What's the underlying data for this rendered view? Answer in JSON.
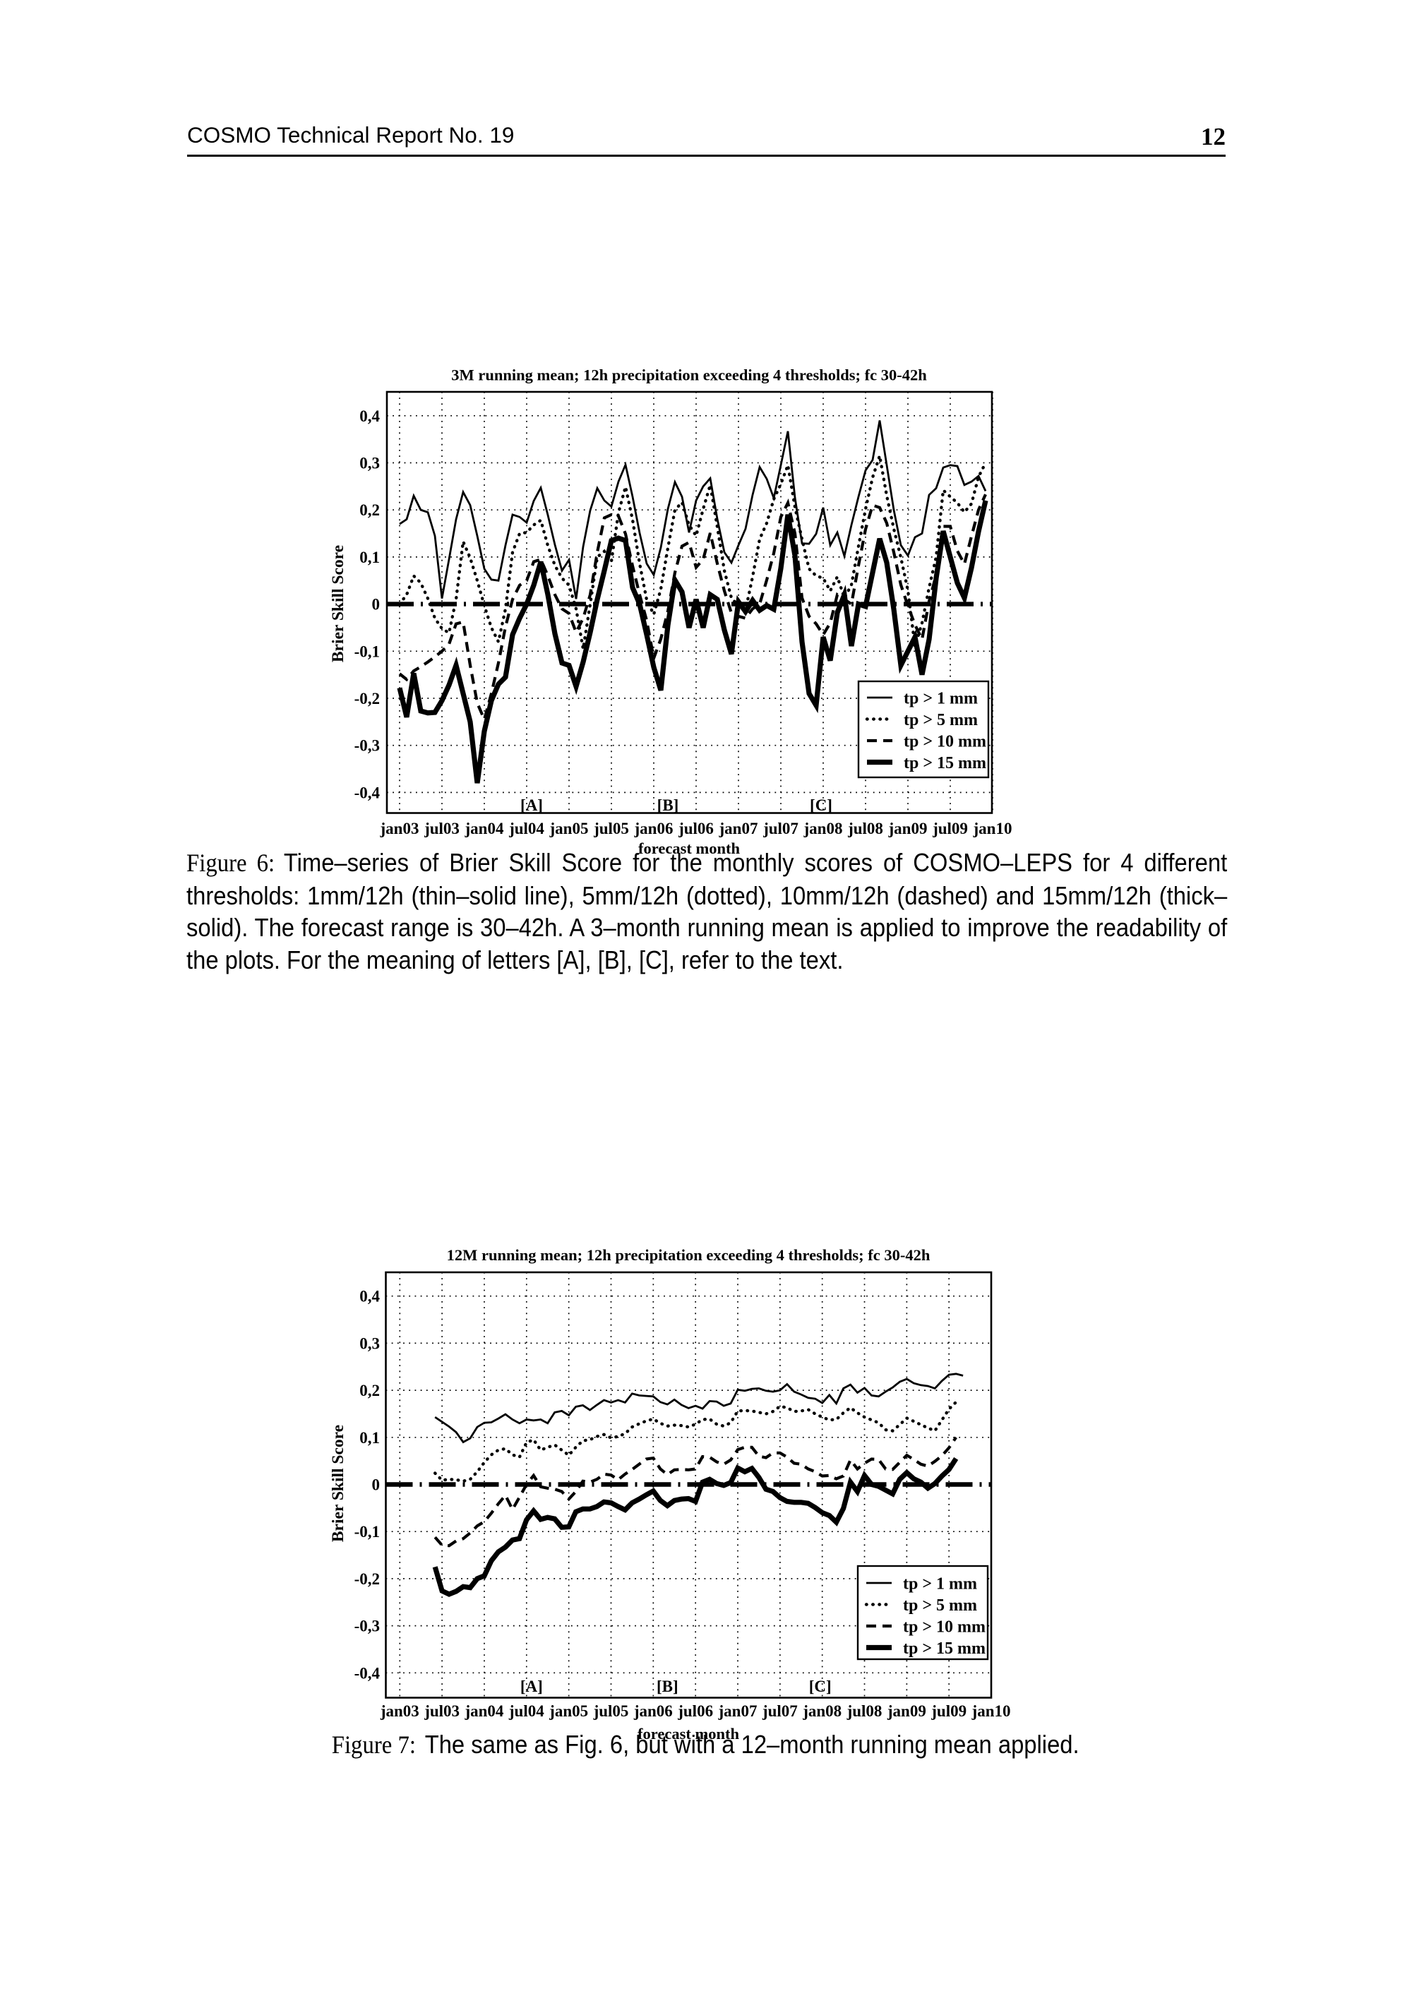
{
  "page": {
    "background": "#ffffff",
    "ink": "#000000"
  },
  "header": {
    "left_text": "COSMO Technical Report No. 19",
    "page_number": "12"
  },
  "captions": {
    "fig6": {
      "label": "Figure 6:",
      "text": "Time–series of Brier Skill Score for the monthly scores of COSMO–LEPS for 4 different thresholds: 1mm/12h (thin–solid line), 5mm/12h (dotted), 10mm/12h (dashed) and 15mm/12h (thick–solid). The forecast range is 30–42h. A 3–month running mean is applied to improve the readability of the plots. For the meaning of letters [A], [B], [C], refer to the text."
    },
    "fig7": {
      "label": "Figure 7:",
      "text": "The same as Fig. 6, but with a 12–month running mean applied."
    }
  },
  "chart_data": [
    {
      "type": "line",
      "title": "3M running mean; 12h precipitation exceeding 4 thresholds; fc 30-42h",
      "xlabel": "forecast month",
      "ylabel": "Brier Skill Score",
      "ylim": [
        -0.45,
        0.45
      ],
      "y_ticks": [
        {
          "value": 0.4,
          "label": "0,4"
        },
        {
          "value": 0.3,
          "label": "0,3"
        },
        {
          "value": 0.2,
          "label": "0,2"
        },
        {
          "value": 0.1,
          "label": "0,1"
        },
        {
          "value": 0.0,
          "label": "0"
        },
        {
          "value": -0.1,
          "label": "-0,1"
        },
        {
          "value": -0.2,
          "label": "-0,2"
        },
        {
          "value": -0.3,
          "label": "-0,3"
        },
        {
          "value": -0.4,
          "label": "-0,4"
        }
      ],
      "x_tick_labels": [
        "jan03",
        "jul03",
        "jan04",
        "jul04",
        "jan05",
        "jul05",
        "jan06",
        "jul06",
        "jan07",
        "jul07",
        "jan08",
        "jul08",
        "jan09",
        "jul09",
        "jan10"
      ],
      "x_tick_months": [
        0,
        6,
        12,
        18,
        24,
        30,
        36,
        42,
        48,
        54,
        60,
        66,
        72,
        78,
        84
      ],
      "annotations": [
        {
          "text": "[A]",
          "month": 18.7
        },
        {
          "text": "[B]",
          "month": 38.0
        },
        {
          "text": "[C]",
          "month": 59.7
        }
      ],
      "legend": [
        {
          "label": "tp > 1 mm",
          "style": "thin-solid"
        },
        {
          "label": "tp > 5 mm",
          "style": "dotted"
        },
        {
          "label": "tp > 10 mm",
          "style": "dashed"
        },
        {
          "label": "tp > 15 mm",
          "style": "thick-solid"
        }
      ],
      "series": [
        {
          "name": "tp > 1 mm",
          "style": "thin-solid",
          "start_month": 0,
          "values": [
            0.17,
            0.18,
            0.23,
            0.2,
            0.195,
            0.145,
            0.012,
            0.095,
            0.18,
            0.238,
            0.21,
            0.145,
            0.075,
            0.052,
            0.05,
            0.125,
            0.19,
            0.185,
            0.173,
            0.219,
            0.247,
            0.189,
            0.126,
            0.071,
            0.094,
            0.011,
            0.122,
            0.199,
            0.246,
            0.22,
            0.207,
            0.26,
            0.296,
            0.228,
            0.151,
            0.086,
            0.062,
            0.12,
            0.202,
            0.259,
            0.228,
            0.152,
            0.22,
            0.25,
            0.267,
            0.181,
            0.11,
            0.088,
            0.125,
            0.16,
            0.232,
            0.291,
            0.266,
            0.225,
            0.295,
            0.367,
            0.226,
            0.129,
            0.128,
            0.149,
            0.205,
            0.125,
            0.152,
            0.102,
            0.168,
            0.228,
            0.284,
            0.306,
            0.39,
            0.295,
            0.2,
            0.125,
            0.103,
            0.142,
            0.15,
            0.232,
            0.246,
            0.29,
            0.295,
            0.293,
            0.253,
            0.26,
            0.272,
            0.24
          ]
        },
        {
          "name": "tp > 5 mm",
          "style": "dotted",
          "start_month": 0,
          "values": [
            0.0,
            0.02,
            0.06,
            0.045,
            0.012,
            -0.03,
            -0.052,
            -0.061,
            0.01,
            0.133,
            0.098,
            0.05,
            -0.003,
            -0.05,
            -0.08,
            -0.01,
            0.11,
            0.15,
            0.152,
            0.168,
            0.178,
            0.124,
            0.082,
            0.055,
            0.04,
            -0.01,
            -0.095,
            0.0,
            0.1,
            0.112,
            0.091,
            0.194,
            0.249,
            0.179,
            0.086,
            0.009,
            -0.022,
            0.032,
            0.119,
            0.2,
            0.216,
            0.168,
            0.145,
            0.202,
            0.253,
            0.164,
            0.071,
            0.013,
            -0.004,
            -0.013,
            0.058,
            0.138,
            0.172,
            0.223,
            0.255,
            0.295,
            0.206,
            0.138,
            0.075,
            0.06,
            0.055,
            0.028,
            0.058,
            0.013,
            0.041,
            0.123,
            0.202,
            0.269,
            0.315,
            0.23,
            0.16,
            0.099,
            0.029,
            -0.09,
            -0.04,
            0.035,
            0.1,
            0.242,
            0.228,
            0.215,
            0.195,
            0.213,
            0.27,
            0.3
          ]
        },
        {
          "name": "tp > 10 mm",
          "style": "dashed",
          "start_month": 0,
          "values": [
            -0.148,
            -0.16,
            -0.142,
            -0.133,
            -0.123,
            -0.112,
            -0.1,
            -0.085,
            -0.042,
            -0.038,
            -0.13,
            -0.21,
            -0.245,
            -0.19,
            -0.125,
            -0.048,
            0.01,
            0.04,
            0.05,
            0.09,
            0.095,
            0.06,
            0.02,
            -0.01,
            -0.02,
            -0.06,
            -0.03,
            0.02,
            0.11,
            0.183,
            0.19,
            0.187,
            0.149,
            0.081,
            0.02,
            -0.035,
            -0.115,
            -0.074,
            -0.015,
            0.067,
            0.123,
            0.131,
            0.078,
            0.095,
            0.151,
            0.086,
            0.028,
            -0.019,
            -0.026,
            -0.03,
            -0.01,
            0.0,
            0.051,
            0.108,
            0.185,
            0.215,
            0.15,
            0.013,
            -0.026,
            -0.042,
            -0.065,
            -0.04,
            0.02,
            0.01,
            0.0,
            0.082,
            0.159,
            0.21,
            0.205,
            0.172,
            0.11,
            0.041,
            -0.004,
            -0.044,
            -0.075,
            0.006,
            0.062,
            0.165,
            0.165,
            0.113,
            0.085,
            0.144,
            0.2,
            0.233
          ]
        },
        {
          "name": "tp > 15 mm",
          "style": "thick-solid",
          "start_month": 0,
          "values": [
            -0.178,
            -0.24,
            -0.147,
            -0.227,
            -0.231,
            -0.23,
            -0.205,
            -0.172,
            -0.13,
            -0.19,
            -0.25,
            -0.38,
            -0.27,
            -0.205,
            -0.17,
            -0.155,
            -0.065,
            -0.03,
            0.0,
            0.04,
            0.09,
            0.02,
            -0.063,
            -0.125,
            -0.13,
            -0.175,
            -0.123,
            -0.06,
            0.01,
            0.071,
            0.135,
            0.14,
            0.135,
            0.035,
            0.0,
            -0.065,
            -0.134,
            -0.183,
            -0.045,
            0.051,
            0.026,
            -0.05,
            0.01,
            -0.05,
            0.02,
            0.01,
            -0.055,
            -0.106,
            0.005,
            -0.016,
            0.008,
            -0.013,
            -0.003,
            -0.011,
            0.076,
            0.19,
            0.103,
            -0.08,
            -0.19,
            -0.215,
            -0.07,
            -0.12,
            -0.018,
            0.02,
            -0.089,
            0.0,
            -0.005,
            0.067,
            0.139,
            0.088,
            -0.011,
            -0.13,
            -0.1,
            -0.07,
            -0.15,
            -0.075,
            0.055,
            0.155,
            0.1,
            0.045,
            0.013,
            0.077,
            0.154,
            0.22
          ]
        }
      ]
    },
    {
      "type": "line",
      "title": "12M running mean; 12h precipitation exceeding 4 thresholds; fc 30-42h",
      "xlabel": "forecast month",
      "ylabel": "Brier Skill Score",
      "ylim": [
        -0.45,
        0.45
      ],
      "y_ticks": [
        {
          "value": 0.4,
          "label": "0,4"
        },
        {
          "value": 0.3,
          "label": "0,3"
        },
        {
          "value": 0.2,
          "label": "0,2"
        },
        {
          "value": 0.1,
          "label": "0,1"
        },
        {
          "value": 0.0,
          "label": "0"
        },
        {
          "value": -0.1,
          "label": "-0,1"
        },
        {
          "value": -0.2,
          "label": "-0,2"
        },
        {
          "value": -0.3,
          "label": "-0,3"
        },
        {
          "value": -0.4,
          "label": "-0,4"
        }
      ],
      "x_tick_labels": [
        "jan03",
        "jul03",
        "jan04",
        "jul04",
        "jan05",
        "jul05",
        "jan06",
        "jul06",
        "jan07",
        "jul07",
        "jan08",
        "jul08",
        "jan09",
        "jul09",
        "jan10"
      ],
      "x_tick_months": [
        0,
        6,
        12,
        18,
        24,
        30,
        36,
        42,
        48,
        54,
        60,
        66,
        72,
        78,
        84
      ],
      "annotations": [
        {
          "text": "[A]",
          "month": 18.7
        },
        {
          "text": "[B]",
          "month": 38.0
        },
        {
          "text": "[C]",
          "month": 59.7
        }
      ],
      "legend": [
        {
          "label": "tp > 1 mm",
          "style": "thin-solid"
        },
        {
          "label": "tp > 5 mm",
          "style": "dotted"
        },
        {
          "label": "tp > 10 mm",
          "style": "dashed"
        },
        {
          "label": "tp > 15 mm",
          "style": "thick-solid"
        }
      ],
      "series": [
        {
          "name": "tp > 1 mm",
          "style": "thin-solid",
          "start_month": 5,
          "values": [
            0.143,
            0.133,
            0.123,
            0.111,
            0.09,
            0.098,
            0.122,
            0.131,
            0.132,
            0.14,
            0.149,
            0.138,
            0.13,
            0.138,
            0.136,
            0.138,
            0.13,
            0.153,
            0.156,
            0.147,
            0.165,
            0.168,
            0.158,
            0.169,
            0.179,
            0.174,
            0.179,
            0.174,
            0.193,
            0.189,
            0.188,
            0.187,
            0.175,
            0.17,
            0.18,
            0.169,
            0.162,
            0.167,
            0.161,
            0.177,
            0.176,
            0.167,
            0.172,
            0.201,
            0.199,
            0.203,
            0.204,
            0.199,
            0.197,
            0.2,
            0.213,
            0.197,
            0.191,
            0.184,
            0.182,
            0.173,
            0.19,
            0.172,
            0.204,
            0.212,
            0.195,
            0.205,
            0.189,
            0.187,
            0.197,
            0.206,
            0.218,
            0.224,
            0.215,
            0.211,
            0.209,
            0.204,
            0.22,
            0.233,
            0.235,
            0.231
          ]
        },
        {
          "name": "tp > 5 mm",
          "style": "dotted",
          "start_month": 5,
          "values": [
            0.024,
            0.009,
            0.011,
            0.01,
            0.007,
            0.011,
            0.027,
            0.047,
            0.063,
            0.073,
            0.076,
            0.063,
            0.058,
            0.089,
            0.095,
            0.073,
            0.079,
            0.084,
            0.073,
            0.062,
            0.079,
            0.093,
            0.095,
            0.102,
            0.106,
            0.099,
            0.102,
            0.108,
            0.122,
            0.129,
            0.135,
            0.139,
            0.13,
            0.124,
            0.126,
            0.125,
            0.122,
            0.128,
            0.138,
            0.139,
            0.128,
            0.124,
            0.131,
            0.156,
            0.157,
            0.156,
            0.153,
            0.15,
            0.155,
            0.166,
            0.163,
            0.155,
            0.156,
            0.159,
            0.15,
            0.143,
            0.137,
            0.138,
            0.152,
            0.163,
            0.152,
            0.143,
            0.137,
            0.131,
            0.116,
            0.114,
            0.127,
            0.141,
            0.134,
            0.127,
            0.12,
            0.114,
            0.137,
            0.16,
            0.175
          ]
        },
        {
          "name": "tp > 10 mm",
          "style": "dashed",
          "start_month": 5,
          "values": [
            -0.112,
            -0.129,
            -0.13,
            -0.12,
            -0.115,
            -0.103,
            -0.088,
            -0.079,
            -0.061,
            -0.041,
            -0.023,
            -0.053,
            -0.027,
            0.0,
            0.019,
            -0.005,
            -0.008,
            -0.01,
            -0.015,
            -0.031,
            -0.015,
            0.007,
            0.005,
            0.011,
            0.022,
            0.02,
            0.01,
            0.022,
            0.032,
            0.043,
            0.054,
            0.056,
            0.033,
            0.021,
            0.031,
            0.032,
            0.031,
            0.033,
            0.059,
            0.058,
            0.048,
            0.043,
            0.052,
            0.074,
            0.079,
            0.079,
            0.06,
            0.057,
            0.067,
            0.067,
            0.058,
            0.045,
            0.043,
            0.033,
            0.027,
            0.018,
            0.019,
            0.012,
            0.018,
            0.052,
            0.033,
            0.045,
            0.054,
            0.053,
            0.033,
            0.032,
            0.047,
            0.062,
            0.053,
            0.043,
            0.039,
            0.049,
            0.061,
            0.078,
            0.1
          ]
        },
        {
          "name": "tp > 15 mm",
          "style": "thick-solid",
          "start_month": 5,
          "values": [
            -0.175,
            -0.226,
            -0.233,
            -0.227,
            -0.217,
            -0.219,
            -0.2,
            -0.194,
            -0.162,
            -0.143,
            -0.133,
            -0.118,
            -0.115,
            -0.075,
            -0.056,
            -0.074,
            -0.07,
            -0.073,
            -0.091,
            -0.09,
            -0.058,
            -0.052,
            -0.052,
            -0.047,
            -0.037,
            -0.039,
            -0.047,
            -0.054,
            -0.039,
            -0.031,
            -0.022,
            -0.014,
            -0.034,
            -0.045,
            -0.034,
            -0.031,
            -0.03,
            -0.036,
            0.005,
            0.011,
            0.002,
            -0.002,
            0.004,
            0.035,
            0.027,
            0.034,
            0.015,
            -0.01,
            -0.015,
            -0.028,
            -0.036,
            -0.038,
            -0.038,
            -0.04,
            -0.049,
            -0.06,
            -0.066,
            -0.08,
            -0.051,
            0.005,
            -0.015,
            0.019,
            0.0,
            -0.004,
            -0.012,
            -0.02,
            0.011,
            0.025,
            0.012,
            0.005,
            -0.008,
            0.002,
            0.018,
            0.032,
            0.055
          ]
        }
      ]
    }
  ]
}
